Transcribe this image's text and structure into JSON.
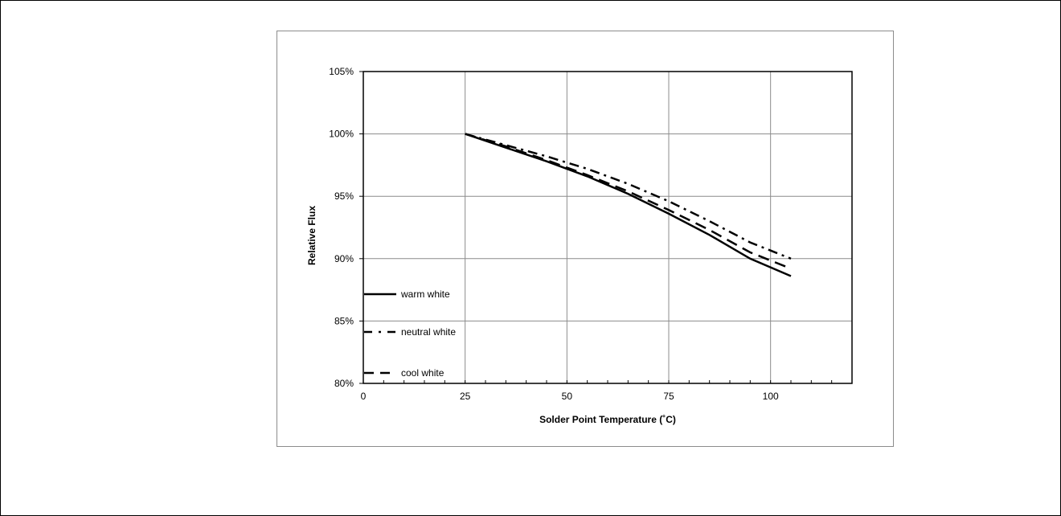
{
  "chart_data": {
    "type": "line",
    "xlabel": "Solder Point Temperature (˚C)",
    "ylabel": "Relative Flux",
    "xlim": [
      0,
      120
    ],
    "ylim": [
      80,
      105
    ],
    "x_ticks": [
      0,
      25,
      50,
      75,
      100
    ],
    "x_tick_labels": [
      "0",
      "25",
      "50",
      "75",
      "100"
    ],
    "y_ticks": [
      80,
      85,
      90,
      95,
      100,
      105
    ],
    "y_tick_labels": [
      "80%",
      "85%",
      "90%",
      "95%",
      "100%",
      "105%"
    ],
    "grid": true,
    "legend_position": "left-bottom inside",
    "series": [
      {
        "name": "warm white",
        "line_style": "solid",
        "color": "#000000",
        "x": [
          25,
          35,
          45,
          55,
          65,
          75,
          85,
          95,
          105
        ],
        "y": [
          100,
          98.9,
          97.8,
          96.6,
          95.2,
          93.6,
          91.9,
          90.0,
          88.6
        ]
      },
      {
        "name": "neutral white",
        "line_style": "dash-dot",
        "color": "#000000",
        "x": [
          25,
          35,
          45,
          55,
          65,
          75,
          85,
          95,
          105
        ],
        "y": [
          100,
          99.1,
          98.2,
          97.2,
          96.0,
          94.6,
          93.0,
          91.3,
          90.0
        ]
      },
      {
        "name": "cool white",
        "line_style": "dashed",
        "color": "#000000",
        "x": [
          25,
          35,
          45,
          55,
          65,
          75,
          85,
          95,
          105
        ],
        "y": [
          100,
          99.0,
          97.9,
          96.7,
          95.4,
          93.9,
          92.3,
          90.5,
          89.2
        ]
      }
    ]
  }
}
